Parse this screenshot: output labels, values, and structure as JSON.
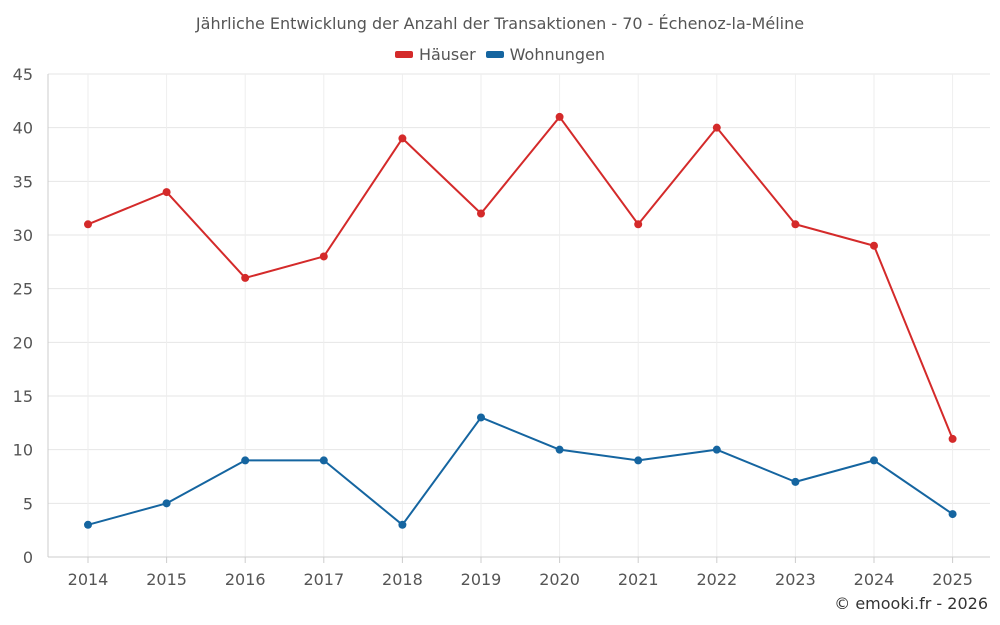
{
  "chart_data": {
    "type": "line",
    "title": "Jährliche Entwicklung der Anzahl der Transaktionen - 70 - Échenoz-la-Méline",
    "x": [
      "2014",
      "2015",
      "2016",
      "2017",
      "2018",
      "2019",
      "2020",
      "2021",
      "2022",
      "2023",
      "2024",
      "2025"
    ],
    "series": [
      {
        "name": "Häuser",
        "color": "#d42a2a",
        "values": [
          31,
          34,
          26,
          28,
          39,
          32,
          41,
          31,
          40,
          31,
          29,
          11
        ]
      },
      {
        "name": "Wohnungen",
        "color": "#1565a0",
        "values": [
          3,
          5,
          9,
          9,
          3,
          13,
          10,
          9,
          10,
          7,
          9,
          4
        ]
      }
    ],
    "y_ticks": [
      0,
      5,
      10,
      15,
      20,
      25,
      30,
      35,
      40,
      45
    ],
    "ylim": [
      0,
      45
    ],
    "grid": true,
    "legend_position": "top-center"
  },
  "credit": "© emooki.fr - 2026"
}
